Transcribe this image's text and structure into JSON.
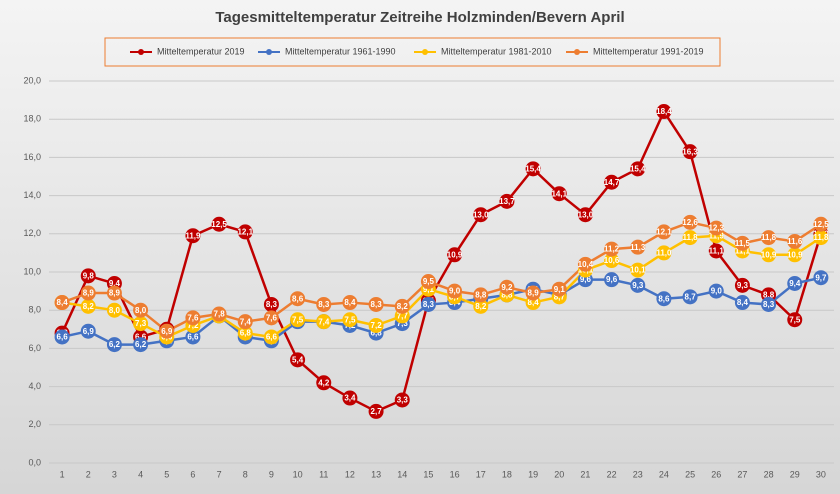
{
  "chart_data": {
    "type": "line",
    "title": "Tagesmitteltemperatur Zeitreihe Holzminden/Bevern April",
    "categories": [
      "1",
      "2",
      "3",
      "4",
      "5",
      "6",
      "7",
      "8",
      "9",
      "10",
      "11",
      "12",
      "13",
      "14",
      "15",
      "16",
      "17",
      "18",
      "19",
      "20",
      "21",
      "22",
      "23",
      "24",
      "25",
      "26",
      "27",
      "28",
      "29",
      "30"
    ],
    "ylim": [
      0,
      20
    ],
    "yticks": [
      {
        "value": 0,
        "label": "0,0"
      },
      {
        "value": 2,
        "label": "2,0"
      },
      {
        "value": 4,
        "label": "4,0"
      },
      {
        "value": 6,
        "label": "6,0"
      },
      {
        "value": 8,
        "label": "8,0"
      },
      {
        "value": 10,
        "label": "10,0"
      },
      {
        "value": 12,
        "label": "12,0"
      },
      {
        "value": 14,
        "label": "14,0"
      },
      {
        "value": 16,
        "label": "16,0"
      },
      {
        "value": 18,
        "label": "18,0"
      },
      {
        "value": 20,
        "label": "20,0"
      }
    ],
    "grid": true,
    "legend": "top",
    "series": [
      {
        "name": "Mitteltemperatur 2019",
        "color": "#c00000",
        "values": [
          6.8,
          9.8,
          9.4,
          6.6,
          7.0,
          11.9,
          12.5,
          12.1,
          8.3,
          5.4,
          4.2,
          3.4,
          2.7,
          3.3,
          8.5,
          10.9,
          13.0,
          13.7,
          15.4,
          14.1,
          13.0,
          14.7,
          15.4,
          18.4,
          16.3,
          11.1,
          9.3,
          8.8,
          7.5,
          12.0
        ],
        "value_labels": [
          "6,8",
          "9,8",
          "9,4",
          "6,6",
          "7,0",
          "11,9",
          "12,5",
          "12,1",
          "8,3",
          "5,4",
          "4,2",
          "3,4",
          "2,7",
          "3,3",
          "8,5",
          "10,9",
          "13,0",
          "13,7",
          "15,4",
          "14,1",
          "13,0",
          "14,7",
          "15,4",
          "18,4",
          "16,3",
          "11,1",
          "9,3",
          "8,8",
          "7,5",
          "12,0"
        ]
      },
      {
        "name": "Mitteltemperatur 1961-1990",
        "color": "#4472c4",
        "values": [
          6.6,
          6.9,
          6.2,
          6.2,
          6.4,
          6.6,
          7.7,
          6.6,
          6.4,
          7.4,
          7.4,
          7.2,
          6.8,
          7.3,
          8.3,
          8.4,
          8.6,
          8.8,
          9.1,
          8.8,
          9.6,
          9.6,
          9.3,
          8.6,
          8.7,
          9.0,
          8.4,
          8.3,
          9.4,
          9.7
        ],
        "value_labels": [
          "6,6",
          "6,9",
          "6,2",
          "6,2",
          "6,4",
          "6,6",
          "7,7",
          "6,6",
          "6,4",
          "7,4",
          "7,4",
          "7,2",
          "6,8",
          "7,3",
          "8,3",
          "8,4",
          "8,6",
          "8,8",
          "9,1",
          "8,8",
          "9,6",
          "9,6",
          "9,3",
          "8,6",
          "8,7",
          "9,0",
          "8,4",
          "8,3",
          "9,4",
          "9,7"
        ]
      },
      {
        "name": "Mitteltemperatur 1981-2010",
        "color": "#ffc000",
        "values": [
          8.4,
          8.2,
          8.0,
          7.3,
          6.6,
          7.2,
          7.7,
          6.8,
          6.6,
          7.5,
          7.4,
          7.5,
          7.2,
          7.7,
          9.1,
          8.7,
          8.2,
          8.8,
          8.4,
          8.7,
          10.1,
          10.6,
          10.1,
          11.0,
          11.8,
          11.9,
          11.1,
          10.9,
          10.9,
          11.8
        ],
        "value_labels": [
          "8,4",
          "8,2",
          "8,0",
          "7,3",
          "6,6",
          "7,2",
          "7,7",
          "6,8",
          "6,6",
          "7,5",
          "7,4",
          "7,5",
          "7,2",
          "7,7",
          "9,1",
          "8,7",
          "8,2",
          "8,8",
          "8,4",
          "8,7",
          "10,1",
          "10,6",
          "10,1",
          "11,0",
          "11,8",
          "11,9",
          "11,1",
          "10,9",
          "10,9",
          "11,8"
        ]
      },
      {
        "name": "Mitteltemperatur 1991-2019",
        "color": "#ed7d31",
        "values": [
          8.4,
          8.9,
          8.9,
          8.0,
          6.9,
          7.6,
          7.8,
          7.4,
          7.6,
          8.6,
          8.3,
          8.4,
          8.3,
          8.2,
          9.5,
          9.0,
          8.8,
          9.2,
          8.9,
          9.1,
          10.4,
          11.2,
          11.3,
          12.1,
          12.6,
          12.3,
          11.5,
          11.8,
          11.6,
          12.5
        ],
        "value_labels": [
          "8,4",
          "8,9",
          "8,9",
          "8,0",
          "6,9",
          "7,6",
          "7,8",
          "7,4",
          "7,6",
          "8,6",
          "8,3",
          "8,4",
          "8,3",
          "8,2",
          "9,5",
          "9,0",
          "8,8",
          "9,2",
          "8,9",
          "9,1",
          "10,4",
          "11,2",
          "11,3",
          "12,1",
          "12,6",
          "12,3",
          "11,5",
          "11,8",
          "11,6",
          "12,5"
        ]
      }
    ]
  }
}
